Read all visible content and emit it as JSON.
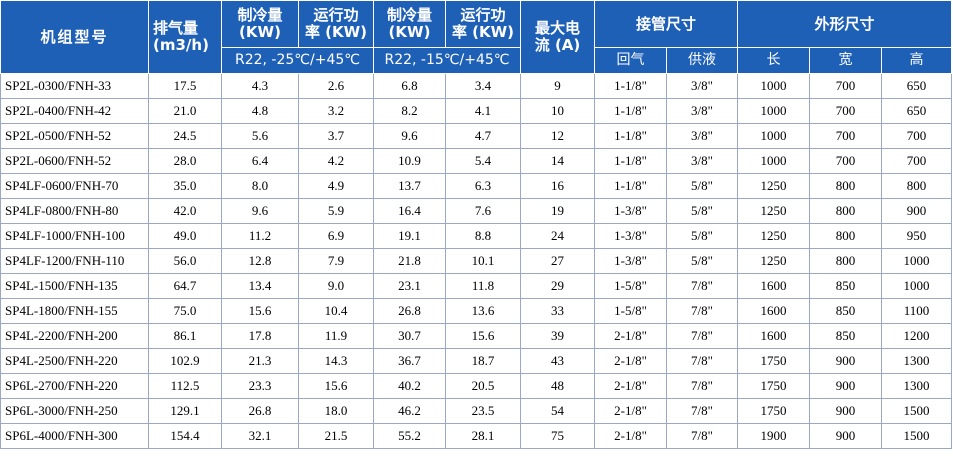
{
  "colors": {
    "header_bg": "#1f60b7",
    "header_text": "#ffffff",
    "grid": "#9aa9c2"
  },
  "header": {
    "model": "机组型号",
    "displacement": [
      "排气量",
      "(m3/h)"
    ],
    "cap_low": [
      "制冷量",
      "(KW)"
    ],
    "power_low": [
      "运行功",
      "率 (KW)"
    ],
    "cap_mid": [
      "制冷量",
      "(KW)"
    ],
    "power_mid": [
      "运行功",
      "率 (KW)"
    ],
    "max_current": [
      "最大电",
      "流 (A)"
    ],
    "pipe": "接管尺寸",
    "dims": "外形尺寸",
    "cond_low": "R22, -25℃/+45℃",
    "cond_mid": "R22, -15℃/+45℃",
    "return_gas": "回气",
    "liquid": "供液",
    "length": "长",
    "width": "宽",
    "height": "高"
  },
  "rows": [
    [
      "SP2L-0300/FNH-33",
      "17.5",
      "4.3",
      "2.6",
      "6.8",
      "3.4",
      "9",
      "1-1/8\"",
      "3/8\"",
      "1000",
      "700",
      "650"
    ],
    [
      "SP2L-0400/FNH-42",
      "21.0",
      "4.8",
      "3.2",
      "8.2",
      "4.1",
      "10",
      "1-1/8\"",
      "3/8\"",
      "1000",
      "700",
      "650"
    ],
    [
      "SP2L-0500/FNH-52",
      "24.5",
      "5.6",
      "3.7",
      "9.6",
      "4.7",
      "12",
      "1-1/8\"",
      "3/8\"",
      "1000",
      "700",
      "700"
    ],
    [
      "SP2L-0600/FNH-52",
      "28.0",
      "6.4",
      "4.2",
      "10.9",
      "5.4",
      "14",
      "1-1/8\"",
      "3/8\"",
      "1000",
      "700",
      "700"
    ],
    [
      "SP4LF-0600/FNH-70",
      "35.0",
      "8.0",
      "4.9",
      "13.7",
      "6.3",
      "16",
      "1-1/8\"",
      "5/8\"",
      "1250",
      "800",
      "800"
    ],
    [
      "SP4LF-0800/FNH-80",
      "42.0",
      "9.6",
      "5.9",
      "16.4",
      "7.6",
      "19",
      "1-3/8\"",
      "5/8\"",
      "1250",
      "800",
      "900"
    ],
    [
      "SP4LF-1000/FNH-100",
      "49.0",
      "11.2",
      "6.9",
      "19.1",
      "8.8",
      "24",
      "1-3/8\"",
      "5/8\"",
      "1250",
      "800",
      "950"
    ],
    [
      "SP4LF-1200/FNH-110",
      "56.0",
      "12.8",
      "7.9",
      "21.8",
      "10.1",
      "27",
      "1-3/8\"",
      "5/8\"",
      "1250",
      "800",
      "1000"
    ],
    [
      "SP4L-1500/FNH-135",
      "64.7",
      "13.4",
      "9.0",
      "23.1",
      "11.8",
      "29",
      "1-5/8\"",
      "7/8\"",
      "1600",
      "850",
      "1000"
    ],
    [
      "SP4L-1800/FNH-155",
      "75.0",
      "15.6",
      "10.4",
      "26.8",
      "13.6",
      "33",
      "1-5/8\"",
      "7/8\"",
      "1600",
      "850",
      "1100"
    ],
    [
      "SP4L-2200/FNH-200",
      "86.1",
      "17.8",
      "11.9",
      "30.7",
      "15.6",
      "39",
      "2-1/8\"",
      "7/8\"",
      "1600",
      "850",
      "1200"
    ],
    [
      "SP4L-2500/FNH-220",
      "102.9",
      "21.3",
      "14.3",
      "36.7",
      "18.7",
      "43",
      "2-1/8\"",
      "7/8\"",
      "1750",
      "900",
      "1300"
    ],
    [
      "SP6L-2700/FNH-220",
      "112.5",
      "23.3",
      "15.6",
      "40.2",
      "20.5",
      "48",
      "2-1/8\"",
      "7/8\"",
      "1750",
      "900",
      "1300"
    ],
    [
      "SP6L-3000/FNH-250",
      "129.1",
      "26.8",
      "18.0",
      "46.2",
      "23.5",
      "54",
      "2-1/8\"",
      "7/8\"",
      "1750",
      "900",
      "1500"
    ],
    [
      "SP6L-4000/FNH-300",
      "154.4",
      "32.1",
      "21.5",
      "55.2",
      "28.1",
      "75",
      "2-1/8\"",
      "7/8\"",
      "1900",
      "900",
      "1500"
    ]
  ]
}
